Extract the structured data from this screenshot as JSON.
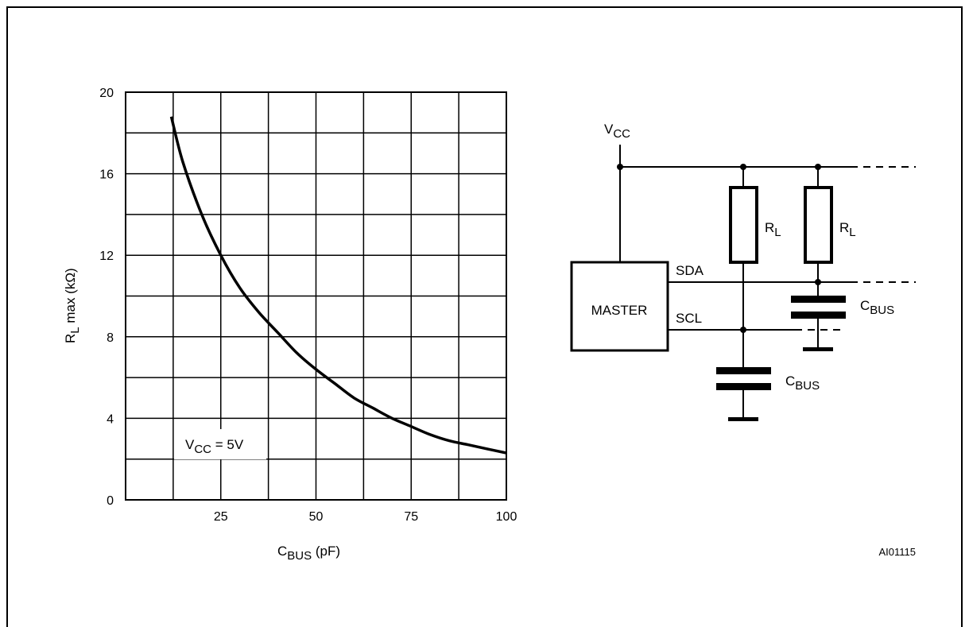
{
  "chart_data": {
    "type": "line",
    "y_axis": {
      "label_main": "R",
      "label_sub": "L",
      "label_rest": " max (kΩ)",
      "ylim": [
        0,
        20
      ],
      "ticks": [
        "0",
        "4",
        "8",
        "12",
        "16",
        "20"
      ]
    },
    "x_axis": {
      "label_main": "C",
      "label_sub": "BUS",
      "label_rest": " (pF)",
      "xlim": [
        0,
        100
      ],
      "ticks": [
        "25",
        "50",
        "75",
        "100"
      ]
    },
    "grid": true,
    "annotation": {
      "main": "V",
      "sub": "CC",
      "rest": " = 5V"
    },
    "series": [
      {
        "points": [
          [
            12,
            18.8
          ],
          [
            15,
            16.6
          ],
          [
            20,
            14.0
          ],
          [
            25,
            12.0
          ],
          [
            30,
            10.4
          ],
          [
            35,
            9.2
          ],
          [
            40,
            8.2
          ],
          [
            45,
            7.2
          ],
          [
            50,
            6.4
          ],
          [
            55,
            5.7
          ],
          [
            60,
            5.0
          ],
          [
            65,
            4.5
          ],
          [
            70,
            4.0
          ],
          [
            75,
            3.6
          ],
          [
            80,
            3.2
          ],
          [
            85,
            2.9
          ],
          [
            90,
            2.7
          ],
          [
            95,
            2.5
          ],
          [
            100,
            2.3
          ]
        ]
      }
    ]
  },
  "circuit": {
    "vcc": {
      "main": "V",
      "sub": "CC"
    },
    "master_label": "MASTER",
    "sda_label": "SDA",
    "scl_label": "SCL",
    "rl1": {
      "main": "R",
      "sub": "L"
    },
    "rl2": {
      "main": "R",
      "sub": "L"
    },
    "cbus1": {
      "main": "C",
      "sub": "BUS"
    },
    "cbus2": {
      "main": "C",
      "sub": "BUS"
    }
  },
  "figure_code": "AI01115"
}
